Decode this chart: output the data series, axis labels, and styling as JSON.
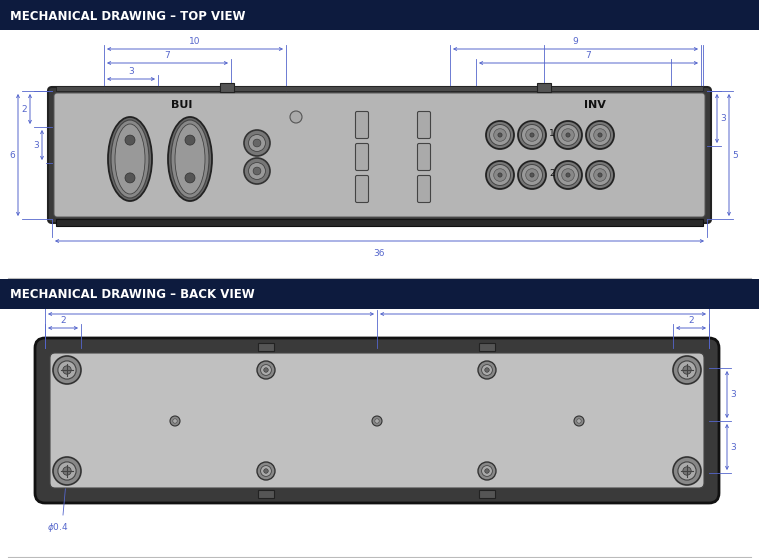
{
  "title_top": "MECHANICAL DRAWING – TOP VIEW",
  "title_back": "MECHANICAL DRAWING – BACK VIEW",
  "header_bg": "#0d1b3e",
  "header_text": "#ffffff",
  "body_bg": "#ffffff",
  "dim_color": "#5566cc",
  "sep_color": "#cccccc",
  "device_dark": "#444444",
  "device_mid": "#888888",
  "device_light": "#b8b8b8",
  "device_lighter": "#cccccc"
}
